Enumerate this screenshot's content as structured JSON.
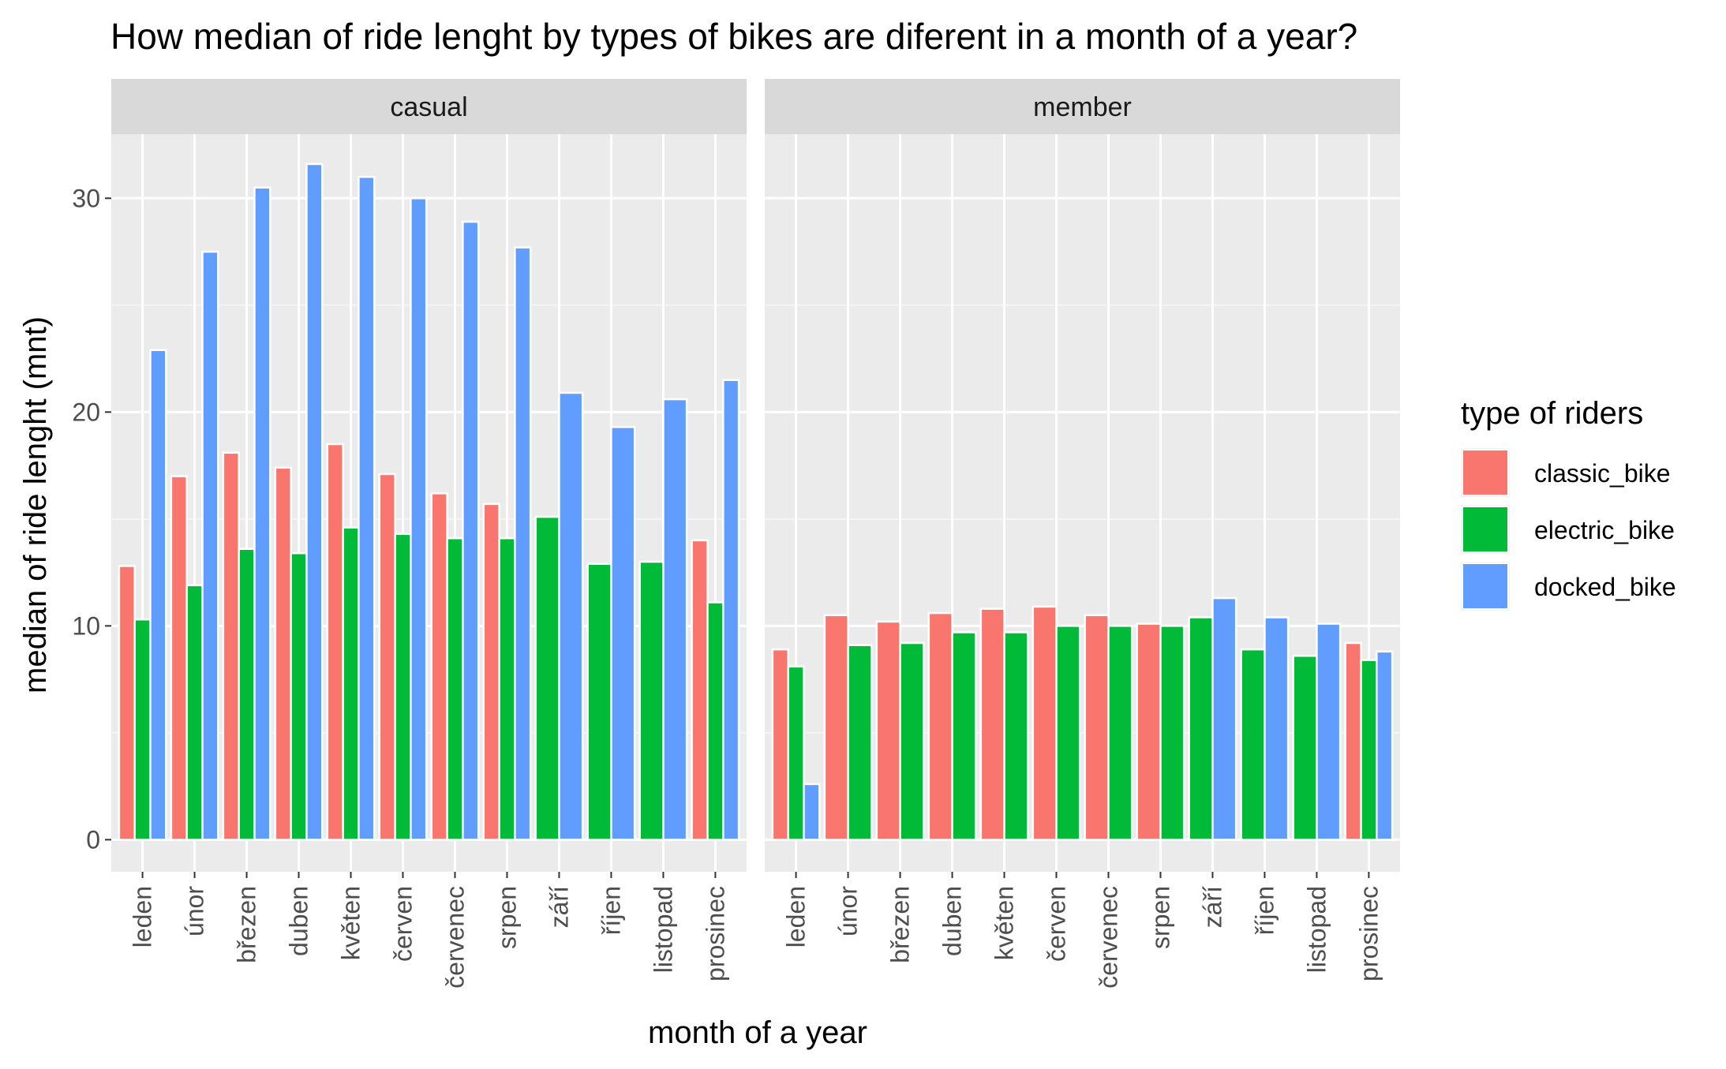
{
  "chart_data": {
    "type": "bar",
    "title": "How median of ride lenght by types of bikes are diferent in a month of a year?",
    "xlabel": "month of a year",
    "ylabel": "median of ride lenght (mnt)",
    "ylim": [
      -1.5,
      33
    ],
    "yticks": [
      0,
      10,
      20,
      30
    ],
    "grid": true,
    "legend_title": "type of riders",
    "legend_position": "right",
    "categories": [
      "leden",
      "únor",
      "březen",
      "duben",
      "květen",
      "červen",
      "červenec",
      "srpen",
      "září",
      "říjen",
      "listopad",
      "prosinec"
    ],
    "series_info": [
      {
        "name": "classic_bike",
        "color": "#F8766D"
      },
      {
        "name": "electric_bike",
        "color": "#00BA38"
      },
      {
        "name": "docked_bike",
        "color": "#619CFF"
      }
    ],
    "panels": [
      {
        "name": "casual",
        "groups": [
          [
            {
              "series": "classic_bike",
              "value": 12.8
            },
            {
              "series": "electric_bike",
              "value": 10.3
            },
            {
              "series": "docked_bike",
              "value": 22.9
            }
          ],
          [
            {
              "series": "classic_bike",
              "value": 17.0
            },
            {
              "series": "electric_bike",
              "value": 11.9
            },
            {
              "series": "docked_bike",
              "value": 27.5
            }
          ],
          [
            {
              "series": "classic_bike",
              "value": 18.1
            },
            {
              "series": "electric_bike",
              "value": 13.6
            },
            {
              "series": "docked_bike",
              "value": 30.5
            }
          ],
          [
            {
              "series": "classic_bike",
              "value": 17.4
            },
            {
              "series": "electric_bike",
              "value": 13.4
            },
            {
              "series": "docked_bike",
              "value": 31.6
            }
          ],
          [
            {
              "series": "classic_bike",
              "value": 18.5
            },
            {
              "series": "electric_bike",
              "value": 14.6
            },
            {
              "series": "docked_bike",
              "value": 31.0
            }
          ],
          [
            {
              "series": "classic_bike",
              "value": 17.1
            },
            {
              "series": "electric_bike",
              "value": 14.3
            },
            {
              "series": "docked_bike",
              "value": 30.0
            }
          ],
          [
            {
              "series": "classic_bike",
              "value": 16.2
            },
            {
              "series": "electric_bike",
              "value": 14.1
            },
            {
              "series": "docked_bike",
              "value": 28.9
            }
          ],
          [
            {
              "series": "classic_bike",
              "value": 15.7
            },
            {
              "series": "electric_bike",
              "value": 14.1
            },
            {
              "series": "docked_bike",
              "value": 27.7
            }
          ],
          [
            {
              "series": "electric_bike",
              "value": 15.1
            },
            {
              "series": "docked_bike",
              "value": 20.9
            }
          ],
          [
            {
              "series": "electric_bike",
              "value": 12.9
            },
            {
              "series": "docked_bike",
              "value": 19.3
            }
          ],
          [
            {
              "series": "electric_bike",
              "value": 13.0
            },
            {
              "series": "docked_bike",
              "value": 20.6
            }
          ],
          [
            {
              "series": "classic_bike",
              "value": 14.0
            },
            {
              "series": "electric_bike",
              "value": 11.1
            },
            {
              "series": "docked_bike",
              "value": 21.5
            }
          ]
        ]
      },
      {
        "name": "member",
        "groups": [
          [
            {
              "series": "classic_bike",
              "value": 8.9
            },
            {
              "series": "electric_bike",
              "value": 8.1
            },
            {
              "series": "docked_bike",
              "value": 2.6
            }
          ],
          [
            {
              "series": "classic_bike",
              "value": 10.5
            },
            {
              "series": "electric_bike",
              "value": 9.1
            }
          ],
          [
            {
              "series": "classic_bike",
              "value": 10.2
            },
            {
              "series": "electric_bike",
              "value": 9.2
            }
          ],
          [
            {
              "series": "classic_bike",
              "value": 10.6
            },
            {
              "series": "electric_bike",
              "value": 9.7
            }
          ],
          [
            {
              "series": "classic_bike",
              "value": 10.8
            },
            {
              "series": "electric_bike",
              "value": 9.7
            }
          ],
          [
            {
              "series": "classic_bike",
              "value": 10.9
            },
            {
              "series": "electric_bike",
              "value": 10.0
            }
          ],
          [
            {
              "series": "classic_bike",
              "value": 10.5
            },
            {
              "series": "electric_bike",
              "value": 10.0
            }
          ],
          [
            {
              "series": "classic_bike",
              "value": 10.1
            },
            {
              "series": "electric_bike",
              "value": 10.0
            }
          ],
          [
            {
              "series": "electric_bike",
              "value": 10.4
            },
            {
              "series": "docked_bike",
              "value": 11.3
            }
          ],
          [
            {
              "series": "electric_bike",
              "value": 8.9
            },
            {
              "series": "docked_bike",
              "value": 10.4
            }
          ],
          [
            {
              "series": "electric_bike",
              "value": 8.6
            },
            {
              "series": "docked_bike",
              "value": 10.1
            }
          ],
          [
            {
              "series": "classic_bike",
              "value": 9.2
            },
            {
              "series": "electric_bike",
              "value": 8.4
            },
            {
              "series": "docked_bike",
              "value": 8.8
            }
          ]
        ]
      }
    ]
  }
}
